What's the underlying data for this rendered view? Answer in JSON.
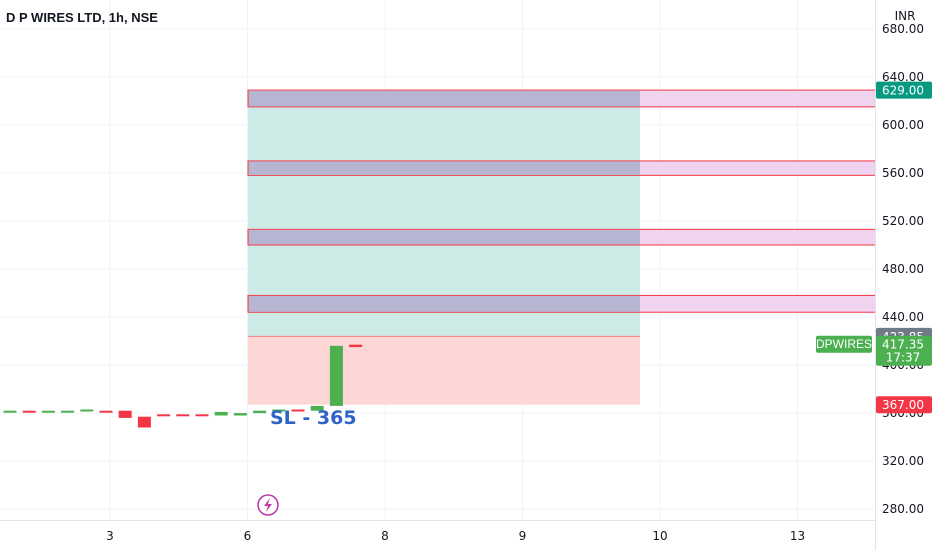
{
  "header": {
    "title": "D P WIRES LTD, 1h, NSE"
  },
  "currency": "INR",
  "annotation": {
    "text": "SL - 365"
  },
  "icon": "lightning-icon",
  "colors": {
    "up": "#4caf50",
    "down": "#f23645",
    "target_zone": "#cdebe6",
    "stop_zone": "#fdd7d5",
    "band_fill": "#b6b5d2",
    "band_ext": "#efd3ef",
    "band_border": "#f23645",
    "sl_text": "#2e64c7"
  },
  "chart_data": {
    "type": "candlestick",
    "title": "D P WIRES LTD, 1h, NSE",
    "symbol": "DPWIRES",
    "y_range": [
      256,
      704
    ],
    "y_ticks": [
      "680.00",
      "640.00",
      "600.00",
      "560.00",
      "520.00",
      "480.00",
      "440.00",
      "400.00",
      "360.00",
      "320.00",
      "280.00"
    ],
    "x_ticks": [
      "3",
      "6",
      "8",
      "9",
      "10",
      "13"
    ],
    "bars": [
      {
        "o": 361,
        "c": 362
      },
      {
        "o": 362,
        "c": 361
      },
      {
        "o": 361,
        "c": 362
      },
      {
        "o": 361,
        "c": 362
      },
      {
        "o": 362,
        "c": 363
      },
      {
        "o": 362,
        "c": 361
      },
      {
        "o": 362,
        "c": 356
      },
      {
        "o": 357,
        "c": 348
      },
      {
        "o": 359,
        "c": 358
      },
      {
        "o": 359,
        "c": 358
      },
      {
        "o": 359,
        "c": 358
      },
      {
        "o": 358,
        "c": 361
      },
      {
        "o": 358,
        "c": 360
      },
      {
        "o": 360,
        "c": 362
      },
      {
        "o": 362,
        "c": 363
      },
      {
        "o": 363,
        "c": 362
      },
      {
        "o": 362,
        "c": 366
      },
      {
        "o": 366,
        "c": 416
      },
      {
        "o": 417,
        "c": 415
      }
    ],
    "position": {
      "entry": 423.85,
      "stop": 367.0,
      "target": 629.0
    },
    "levels": [
      {
        "low": 615,
        "high": 629
      },
      {
        "low": 558,
        "high": 570
      },
      {
        "low": 500,
        "high": 513
      },
      {
        "low": 444,
        "high": 458
      }
    ],
    "price_labels": [
      {
        "value": "629.00",
        "price": 629,
        "bg": "#089981",
        "fg": "#ffffff"
      },
      {
        "value": "423.85",
        "price": 423.85,
        "bg": "#707987",
        "fg": "#ffffff"
      },
      {
        "value": "417.35",
        "sub": "17:37",
        "price": 417.35,
        "bg": "#4caf50",
        "fg": "#ffffff"
      },
      {
        "value": "367.00",
        "price": 367,
        "bg": "#f23645",
        "fg": "#ffffff"
      }
    ],
    "last_price": 417.35,
    "countdown": "17:37"
  }
}
